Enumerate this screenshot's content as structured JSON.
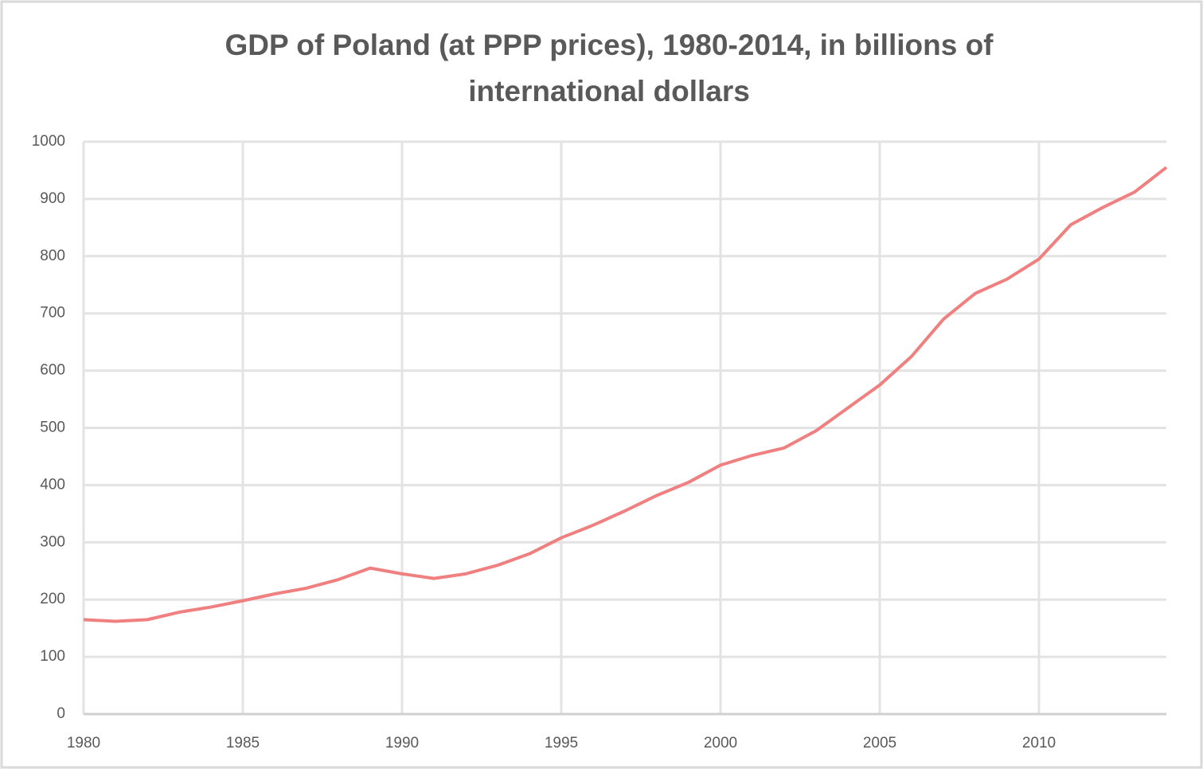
{
  "chart_data": {
    "type": "line",
    "title": "GDP of Poland (at PPP prices), 1980-2014, in billions of international dollars",
    "x": [
      1980,
      1981,
      1982,
      1983,
      1984,
      1985,
      1986,
      1987,
      1988,
      1989,
      1990,
      1991,
      1992,
      1993,
      1994,
      1995,
      1996,
      1997,
      1998,
      1999,
      2000,
      2001,
      2002,
      2003,
      2004,
      2005,
      2006,
      2007,
      2008,
      2009,
      2010,
      2011,
      2012,
      2013,
      2014
    ],
    "series": [
      {
        "name": "GDP",
        "color": "#f08080",
        "values": [
          165,
          162,
          165,
          178,
          187,
          198,
          210,
          220,
          235,
          255,
          245,
          237,
          245,
          260,
          280,
          308,
          330,
          355,
          382,
          405,
          435,
          452,
          465,
          495,
          535,
          575,
          625,
          690,
          735,
          760,
          795,
          855,
          885,
          912,
          955
        ]
      }
    ],
    "xlim": [
      1980,
      2014
    ],
    "xticks": [
      1980,
      1985,
      1990,
      1995,
      2000,
      2005,
      2010
    ],
    "ylim": [
      0,
      1000
    ],
    "yticks": [
      0,
      100,
      200,
      300,
      400,
      500,
      600,
      700,
      800,
      900,
      1000
    ],
    "grid": true
  }
}
